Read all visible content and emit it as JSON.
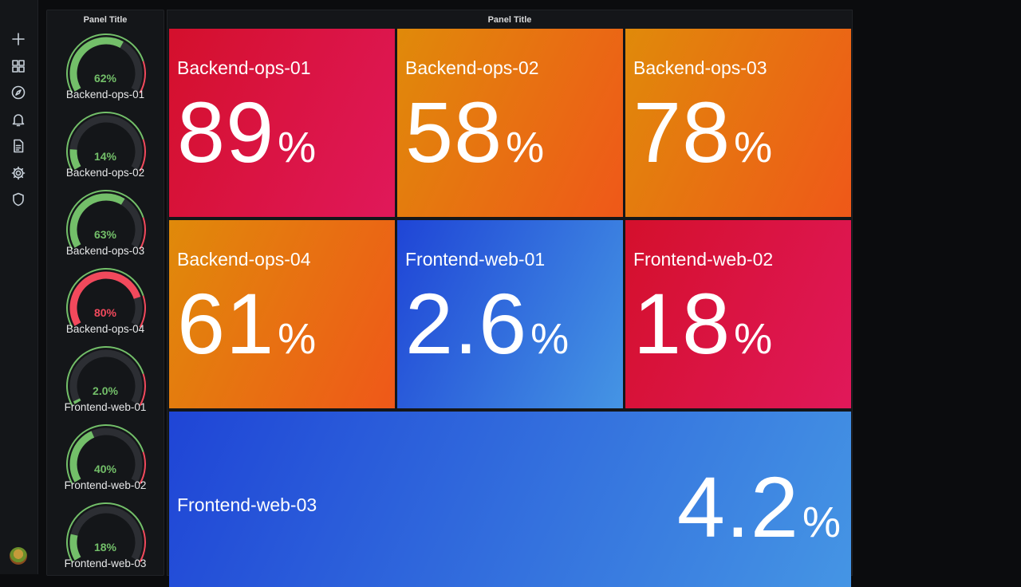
{
  "nav": {
    "icons": [
      "plus-icon",
      "dashboards-icon",
      "explore-icon",
      "alerting-icon",
      "reports-icon",
      "settings-icon",
      "shield-icon"
    ]
  },
  "gauge_panel": {
    "title": "Panel Title",
    "gauges": [
      {
        "label": "Backend-ops-01",
        "value": "62%",
        "fraction": 0.62,
        "color": "#73bf69"
      },
      {
        "label": "Backend-ops-02",
        "value": "14%",
        "fraction": 0.14,
        "color": "#73bf69"
      },
      {
        "label": "Backend-ops-03",
        "value": "63%",
        "fraction": 0.63,
        "color": "#73bf69"
      },
      {
        "label": "Backend-ops-04",
        "value": "80%",
        "fraction": 0.8,
        "color": "#f2495c"
      },
      {
        "label": "Frontend-web-01",
        "value": "2.0%",
        "fraction": 0.02,
        "color": "#73bf69"
      },
      {
        "label": "Frontend-web-02",
        "value": "40%",
        "fraction": 0.4,
        "color": "#73bf69"
      },
      {
        "label": "Frontend-web-03",
        "value": "18%",
        "fraction": 0.18,
        "color": "#73bf69"
      }
    ]
  },
  "stat_panel": {
    "title": "Panel Title",
    "tiles": [
      {
        "name": "Backend-ops-01",
        "value": "89",
        "unit": "%",
        "color": "#d8143b"
      },
      {
        "name": "Backend-ops-02",
        "value": "58",
        "unit": "%",
        "color": "#e5760f"
      },
      {
        "name": "Backend-ops-03",
        "value": "78",
        "unit": "%",
        "color": "#e5760f"
      },
      {
        "name": "Backend-ops-04",
        "value": "61",
        "unit": "%",
        "color": "#e5760f"
      },
      {
        "name": "Frontend-web-01",
        "value": "2.6",
        "unit": "%",
        "color": "#2557e0"
      },
      {
        "name": "Frontend-web-02",
        "value": "18",
        "unit": "%",
        "color": "#56a64b"
      },
      {
        "name": "Frontend-web-03",
        "value": "4.2",
        "unit": "%",
        "color": "#2557e0"
      }
    ]
  },
  "colors": {
    "green": "#73bf69",
    "red": "#f2495c",
    "orange": "#e5760f",
    "blue": "#2557e0",
    "track": "#2c2e33"
  }
}
